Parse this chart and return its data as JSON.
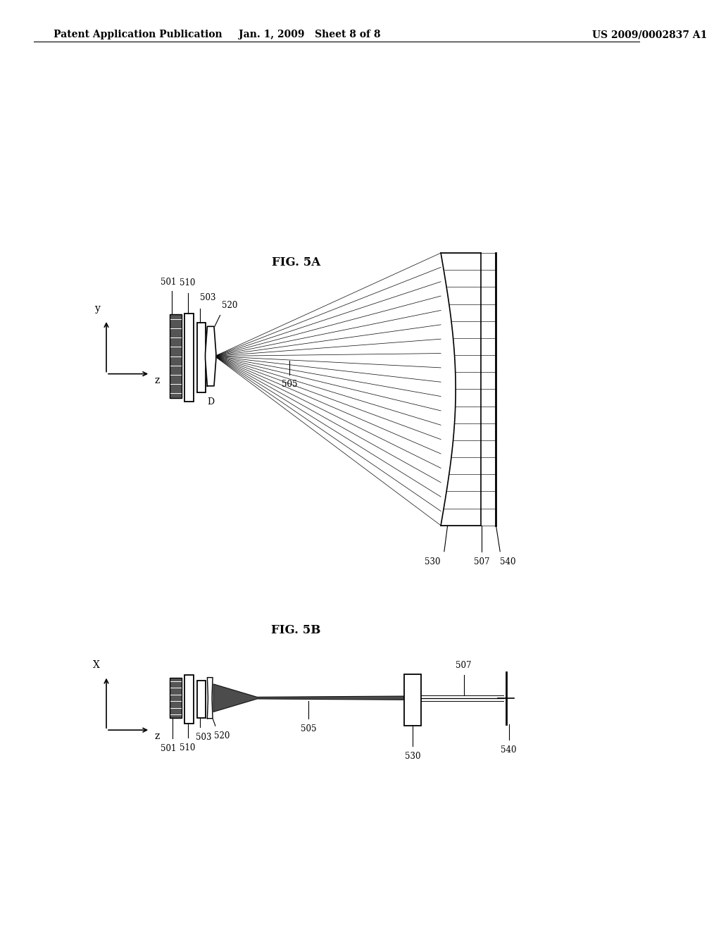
{
  "bg_color": "#ffffff",
  "header_left": "Patent Application Publication",
  "header_center": "Jan. 1, 2009   Sheet 8 of 8",
  "header_right": "US 2009/0002837 A1",
  "fig5a_title": "FIG. 5A",
  "fig5b_title": "FIG. 5B"
}
